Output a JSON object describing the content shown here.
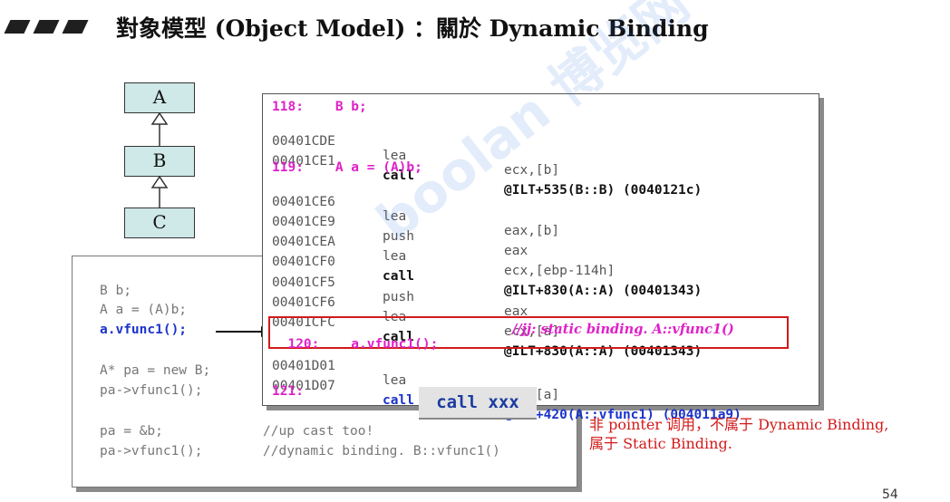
{
  "title": "對象模型 (Object Model) ：關於 Dynamic Binding",
  "uml": {
    "a": "A",
    "b": "B",
    "c": "C"
  },
  "left_code": {
    "line1": "B b;",
    "line2": "A a = (A)b;",
    "line3": "a.vfunc1();",
    "line4": "A* pa = new B;",
    "line5": "pa->vfunc1();",
    "line6_code": "pa = &b;",
    "line6_comment": "//up cast too!",
    "line7_code": "pa->vfunc1();",
    "line7_comment": "//dynamic binding. B::vfunc1()"
  },
  "asm": {
    "src118": "118:    B b;",
    "r1": {
      "addr": "00401CDE",
      "op": "lea",
      "arg": "ecx,[b]"
    },
    "r2": {
      "addr": "00401CE1",
      "op": "call",
      "arg": "@ILT+535(B::B) (0040121c)"
    },
    "src119": "119:    A a = (A)b;",
    "r3": {
      "addr": "00401CE6",
      "op": "lea",
      "arg": "eax,[b]"
    },
    "r4": {
      "addr": "00401CE9",
      "op": "push",
      "arg": "eax"
    },
    "r5": {
      "addr": "00401CEA",
      "op": "lea",
      "arg": "ecx,[ebp-114h]"
    },
    "r6": {
      "addr": "00401CF0",
      "op": "call",
      "arg": "@ILT+830(A::A) (00401343)"
    },
    "r7": {
      "addr": "00401CF5",
      "op": "push",
      "arg": "eax"
    },
    "r8": {
      "addr": "00401CF6",
      "op": "lea",
      "arg": "ecx,[a]"
    },
    "r9": {
      "addr": "00401CFC",
      "op": "call",
      "arg": "@ILT+830(A::A) (00401343)"
    },
    "src120": "120:    a.vfunc1();",
    "src120_comment": "//jj: static binding. A::vfunc1()",
    "r10": {
      "addr": "00401D01",
      "op": "lea",
      "arg": "ecx,[a]"
    },
    "r11": {
      "addr": "00401D07",
      "op": "call",
      "arg": "@ILT+420(A::vfunc1) (004011a9)"
    },
    "src121": "121:"
  },
  "call_xxx": "call xxx",
  "note": "非 pointer 调用，不属于 Dynamic Binding,\n属于 Static Binding.",
  "page_number": "54",
  "watermark": "boolan 博览网",
  "colors": {
    "uml_fill": "#cfe8e8",
    "highlight_border": "#d21a1a",
    "source_pink": "#e020c8",
    "code_blue": "#1b33cc"
  }
}
